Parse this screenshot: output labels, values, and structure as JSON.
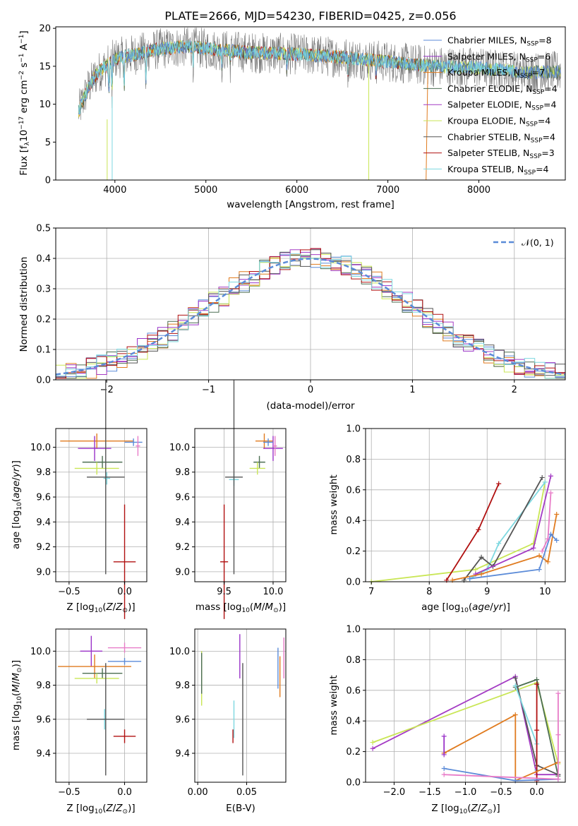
{
  "colors": {
    "Chabrier MILES": "#5b8bd8",
    "Salpeter MILES": "#9a32c8",
    "Kroupa MILES": "#e07b1f",
    "Chabrier ELODIE": "#4c6e52",
    "Salpeter ELODIE": "#a43bc4",
    "Kroupa ELODIE": "#c9e655",
    "Chabrier STELIB": "#555555",
    "Salpeter STELIB": "#b01010",
    "Kroupa STELIB": "#7dd8e0",
    "extra": "#e87cc8",
    "gray_spec": "#777777",
    "grid": "#b0b0b0"
  },
  "chart_data": [
    {
      "type": "line",
      "title": "PLATE=2666, MJD=54230, FIBERID=0425, z=0.056",
      "xlabel": "wavelength [Angstrom, rest frame]",
      "ylabel": "Flux [f_λ 10^-17 erg cm^-2 s^-1 A^-1]",
      "xlim": [
        3350,
        8950
      ],
      "ylim": [
        0,
        20.2
      ],
      "xticks": [
        "4000",
        "5000",
        "6000",
        "7000",
        "8000"
      ],
      "yticks": [
        "0",
        "5",
        "10",
        "15",
        "20"
      ],
      "grid": false,
      "legend_position": "right",
      "legend": [
        {
          "name": "Chabrier MILES, N",
          "sub": "SSP",
          "n": "=8"
        },
        {
          "name": "Salpeter MILES, N",
          "sub": "SSP",
          "n": "=6"
        },
        {
          "name": "Kroupa MILES, N",
          "sub": "SSP",
          "n": "=7"
        },
        {
          "name": "Chabrier ELODIE, N",
          "sub": "SSP",
          "n": "=4"
        },
        {
          "name": "Salpeter ELODIE, N",
          "sub": "SSP",
          "n": "=4"
        },
        {
          "name": "Kroupa ELODIE, N",
          "sub": "SSP",
          "n": "=4"
        },
        {
          "name": "Chabrier STELIB, N",
          "sub": "SSP",
          "n": "=4"
        },
        {
          "name": "Salpeter STELIB, N",
          "sub": "SSP",
          "n": "=3"
        },
        {
          "name": "Kroupa STELIB, N",
          "sub": "SSP",
          "n": "=4"
        }
      ],
      "continuum": {
        "x": [
          3600,
          3700,
          3800,
          3900,
          4000,
          4200,
          4500,
          4800,
          5000,
          5500,
          6000,
          6500,
          7000,
          7500,
          8000,
          8500,
          8900
        ],
        "y": [
          9.0,
          12.0,
          14.0,
          15.0,
          16.0,
          16.5,
          17.3,
          17.6,
          17.3,
          16.8,
          16.6,
          16.2,
          15.6,
          15.0,
          14.8,
          14.2,
          14.3
        ]
      }
    },
    {
      "type": "line",
      "xlabel": "(data-model)/error",
      "ylabel": "Normed distribution",
      "xlim": [
        -2.5,
        2.5
      ],
      "ylim": [
        0,
        0.5
      ],
      "xticks": [
        "−2",
        "−1",
        "0",
        "1",
        "2"
      ],
      "yticks": [
        "0.0",
        "0.1",
        "0.2",
        "0.3",
        "0.4",
        "0.5"
      ],
      "grid": true,
      "legend_position": "top-right",
      "legend": [
        {
          "name": "𝒩(0, 1)"
        }
      ],
      "reference_curve": {
        "name": "𝒩(0, 1)",
        "mean": 0,
        "sigma": 1
      }
    },
    {
      "type": "scatter",
      "xlabel": "Z [log10(Z/Z☉)]",
      "ylabel": "age [log10(age/yr)]",
      "xlim": [
        -0.62,
        0.2
      ],
      "ylim": [
        8.92,
        10.15
      ],
      "xticks": [
        "−0.5",
        "0.0"
      ],
      "yticks": [
        "9.0",
        "9.2",
        "9.4",
        "9.6",
        "9.8",
        "10.0"
      ],
      "grid": true,
      "points": [
        {
          "series": "Kroupa MILES",
          "x": -0.25,
          "y": 10.05,
          "ex": 0.33,
          "ey": 0.06
        },
        {
          "series": "Salpeter MILES",
          "x": -0.27,
          "y": 9.99,
          "ex": 0.15,
          "ey": 0.1
        },
        {
          "series": "Chabrier MILES",
          "x": 0.08,
          "y": 10.04,
          "ex": 0.08,
          "ey": 0.03
        },
        {
          "series": "extra",
          "x": 0.12,
          "y": 10.01,
          "ex": 0.02,
          "ey": 0.08
        },
        {
          "series": "Chabrier ELODIE",
          "x": -0.2,
          "y": 9.88,
          "ex": 0.18,
          "ey": 0.05
        },
        {
          "series": "Kroupa ELODIE",
          "x": -0.25,
          "y": 9.83,
          "ex": 0.2,
          "ey": 0.05
        },
        {
          "series": "Kroupa STELIB",
          "x": -0.16,
          "y": 9.75,
          "ex": 0.03,
          "ey": 0.05
        },
        {
          "series": "Chabrier STELIB",
          "x": -0.17,
          "y": 9.76,
          "ex": 0.17,
          "ey": 0.78
        },
        {
          "series": "Salpeter STELIB",
          "x": 0.0,
          "y": 9.08,
          "ex": 0.1,
          "ey": 0.46
        }
      ]
    },
    {
      "type": "scatter",
      "xlabel": "mass [log10(M/M☉)]",
      "ylabel": "",
      "xlim": [
        9.2,
        10.13
      ],
      "ylim": [
        8.92,
        10.15
      ],
      "xticks": [
        "9.5",
        "10.0"
      ],
      "yticks": [
        "9.0",
        "9.2",
        "9.4",
        "9.6",
        "9.8",
        "10.0"
      ],
      "grid": true,
      "points": [
        {
          "series": "Kroupa MILES",
          "x": 9.91,
          "y": 10.05,
          "ex": 0.09,
          "ey": 0.06
        },
        {
          "series": "Salpeter MILES",
          "x": 10.0,
          "y": 9.99,
          "ex": 0.1,
          "ey": 0.1
        },
        {
          "series": "Chabrier MILES",
          "x": 9.95,
          "y": 10.04,
          "ex": 0.05,
          "ey": 0.03
        },
        {
          "series": "extra",
          "x": 10.02,
          "y": 10.01,
          "ex": 0.02,
          "ey": 0.08
        },
        {
          "series": "Chabrier ELODIE",
          "x": 9.86,
          "y": 9.88,
          "ex": 0.06,
          "ey": 0.05
        },
        {
          "series": "Kroupa ELODIE",
          "x": 9.84,
          "y": 9.83,
          "ex": 0.08,
          "ey": 0.05
        },
        {
          "series": "Kroupa STELIB",
          "x": 9.6,
          "y": 9.74,
          "ex": 0.05,
          "ey": 0.05
        },
        {
          "series": "Chabrier STELIB",
          "x": 9.6,
          "y": 9.76,
          "ex": 0.09,
          "ey": 0.78
        },
        {
          "series": "Salpeter STELIB",
          "x": 9.5,
          "y": 9.08,
          "ex": 0.04,
          "ey": 0.46
        }
      ]
    },
    {
      "type": "line",
      "xlabel": "age [log10(age/yr)]",
      "ylabel": "mass weight",
      "xlim": [
        6.9,
        10.35
      ],
      "ylim": [
        0,
        1.0
      ],
      "xticks": [
        "7",
        "8",
        "9",
        "10"
      ],
      "yticks": [
        "0.0",
        "0.2",
        "0.4",
        "0.6",
        "0.8",
        "1.0"
      ],
      "grid": true,
      "series": [
        {
          "name": "Kroupa ELODIE",
          "x": [
            7.0,
            8.8,
            9.8,
            10.0
          ],
          "y": [
            0.0,
            0.08,
            0.25,
            0.65
          ]
        },
        {
          "name": "Kroupa STELIB",
          "x": [
            8.7,
            9.0,
            9.2,
            10.0
          ],
          "y": [
            0.02,
            0.08,
            0.25,
            0.65
          ]
        },
        {
          "name": "Salpeter STELIB",
          "x": [
            8.3,
            8.85,
            9.2
          ],
          "y": [
            0.01,
            0.34,
            0.64
          ]
        },
        {
          "name": "Chabrier STELIB",
          "x": [
            8.6,
            8.9,
            9.1,
            9.95
          ],
          "y": [
            0.01,
            0.16,
            0.1,
            0.68
          ]
        },
        {
          "name": "Salpeter ELODIE",
          "x": [
            8.8,
            9.8,
            10.1
          ],
          "y": [
            0.05,
            0.22,
            0.69
          ]
        },
        {
          "name": "Kroupa MILES",
          "x": [
            8.4,
            8.9,
            9.9,
            10.05,
            10.2
          ],
          "y": [
            0.01,
            0.05,
            0.17,
            0.13,
            0.44
          ]
        },
        {
          "name": "Chabrier MILES",
          "x": [
            8.7,
            9.9,
            10.1,
            10.2
          ],
          "y": [
            0.02,
            0.08,
            0.31,
            0.27
          ]
        },
        {
          "name": "extra",
          "x": [
            9.95,
            10.05,
            10.1
          ],
          "y": [
            0.2,
            0.28,
            0.58
          ]
        }
      ]
    },
    {
      "type": "scatter",
      "xlabel": "Z [log10(Z/Z☉)]",
      "ylabel": "mass [log10(M/M☉)]",
      "xlim": [
        -0.62,
        0.2
      ],
      "ylim": [
        9.23,
        10.13
      ],
      "xticks": [
        "−0.5",
        "0.0"
      ],
      "yticks": [
        "9.4",
        "9.6",
        "9.8",
        "10.0"
      ],
      "grid": true,
      "points": [
        {
          "series": "Salpeter MILES",
          "x": -0.3,
          "y": 10.0,
          "ex": 0.1,
          "ey": 0.09
        },
        {
          "series": "extra",
          "x": 0.0,
          "y": 10.02,
          "ex": 0.15,
          "ey": 0.03
        },
        {
          "series": "Chabrier MILES",
          "x": 0.0,
          "y": 9.94,
          "ex": 0.15,
          "ey": 0.02
        },
        {
          "series": "Kroupa MILES",
          "x": -0.27,
          "y": 9.91,
          "ex": 0.33,
          "ey": 0.07
        },
        {
          "series": "Chabrier ELODIE",
          "x": -0.2,
          "y": 9.87,
          "ex": 0.18,
          "ey": 0.03
        },
        {
          "series": "Kroupa ELODIE",
          "x": -0.25,
          "y": 9.84,
          "ex": 0.2,
          "ey": 0.03
        },
        {
          "series": "Kroupa STELIB",
          "x": -0.18,
          "y": 9.6,
          "ex": 0.04,
          "ey": 0.06
        },
        {
          "series": "Chabrier STELIB",
          "x": -0.17,
          "y": 9.6,
          "ex": 0.17,
          "ey": 0.33
        },
        {
          "series": "Salpeter STELIB",
          "x": 0.0,
          "y": 9.5,
          "ex": 0.1,
          "ey": 0.04
        }
      ]
    },
    {
      "type": "scatter",
      "xlabel": "E(B-V)",
      "ylabel": "",
      "xlim": [
        -0.003,
        0.09
      ],
      "ylim": [
        9.23,
        10.13
      ],
      "xticks": [
        "0.00",
        "0.05"
      ],
      "yticks": [
        "9.4",
        "9.6",
        "9.8",
        "10.0"
      ],
      "grid": true,
      "points": [
        {
          "series": "Kroupa ELODIE",
          "x": 0.004,
          "y": 9.84,
          "ex": 0,
          "ey": 0.16
        },
        {
          "series": "Chabrier ELODIE",
          "x": 0.004,
          "y": 9.87,
          "ex": 0,
          "ey": 0.12
        },
        {
          "series": "Kroupa STELIB",
          "x": 0.037,
          "y": 9.6,
          "ex": 0,
          "ey": 0.11
        },
        {
          "series": "Salpeter STELIB",
          "x": 0.036,
          "y": 9.5,
          "ex": 0,
          "ey": 0.04
        },
        {
          "series": "Salpeter MILES",
          "x": 0.043,
          "y": 9.97,
          "ex": 0,
          "ey": 0.13
        },
        {
          "series": "Chabrier STELIB",
          "x": 0.046,
          "y": 9.6,
          "ex": 0,
          "ey": 0.33
        },
        {
          "series": "Chabrier MILES",
          "x": 0.082,
          "y": 9.9,
          "ex": 0,
          "ey": 0.12
        },
        {
          "series": "Kroupa MILES",
          "x": 0.084,
          "y": 9.85,
          "ex": 0,
          "ey": 0.12
        },
        {
          "series": "extra",
          "x": 0.088,
          "y": 9.96,
          "ex": 0,
          "ey": 0.12
        }
      ]
    },
    {
      "type": "line",
      "xlabel": "Z [log10(Z/Z☉)]",
      "ylabel": "mass weight",
      "xlim": [
        -2.4,
        0.4
      ],
      "ylim": [
        0,
        1.0
      ],
      "xticks": [
        "−2.0",
        "−1.5",
        "−1.0",
        "−0.5",
        "0.0"
      ],
      "yticks": [
        "0.0",
        "0.2",
        "0.4",
        "0.6",
        "0.8",
        "1.0"
      ],
      "grid": true,
      "series": [
        {
          "name": "Salpeter ELODIE",
          "x": [
            -2.3,
            -0.3,
            0.0,
            0.3
          ],
          "y": [
            0.22,
            0.69,
            0.05,
            0.05
          ]
        },
        {
          "name": "Kroupa ELODIE",
          "x": [
            -2.3,
            0.0,
            0.3
          ],
          "y": [
            0.26,
            0.65,
            0.12
          ]
        },
        {
          "name": "Chabrier ELODIE",
          "x": [
            -0.3,
            0.0,
            0.3
          ],
          "y": [
            0.62,
            0.67,
            0.04
          ]
        },
        {
          "name": "Chabrier STELIB",
          "x": [
            -0.3,
            0.0,
            0.3
          ],
          "y": [
            0.68,
            0.11,
            0.05
          ]
        },
        {
          "name": "Kroupa STELIB",
          "x": [
            -0.3,
            0.0,
            0.0
          ],
          "y": [
            0.63,
            0.25,
            0.08
          ]
        },
        {
          "name": "Salpeter STELIB",
          "x": [
            0.0,
            0.0,
            0.0
          ],
          "y": [
            0.01,
            0.34,
            0.64
          ]
        },
        {
          "name": "Kroupa MILES",
          "x": [
            -1.3,
            -0.3,
            -0.3,
            0.3
          ],
          "y": [
            0.19,
            0.44,
            0.01,
            0.13
          ]
        },
        {
          "name": "Chabrier MILES",
          "x": [
            -1.3,
            -0.3,
            0.3
          ],
          "y": [
            0.09,
            0.01,
            0.02
          ]
        },
        {
          "name": "Salpeter MILES",
          "x": [
            -1.3,
            -1.3
          ],
          "y": [
            0.18,
            0.3
          ]
        },
        {
          "name": "extra",
          "x": [
            -1.3,
            0.3,
            0.3,
            0.3
          ],
          "y": [
            0.05,
            0.02,
            0.31,
            0.58
          ]
        }
      ]
    }
  ]
}
